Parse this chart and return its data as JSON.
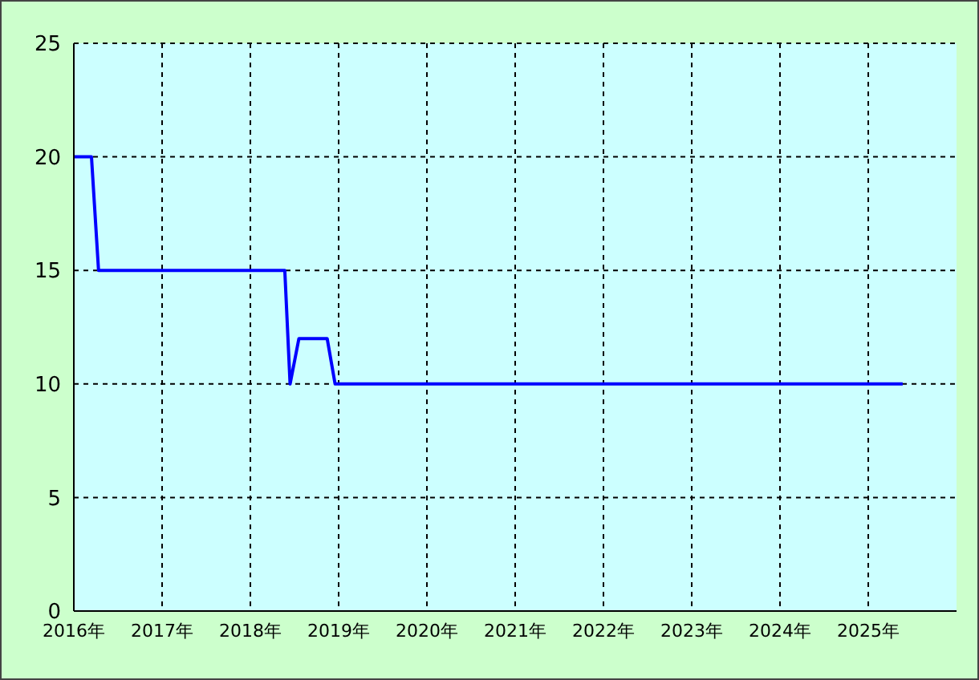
{
  "chart_data": {
    "type": "line",
    "x": [
      2016,
      2016.2,
      2016.28,
      2018.39,
      2018.45,
      2018.55,
      2018.87,
      2018.96,
      2025.39
    ],
    "series": [
      {
        "color": "#0000ff",
        "values": [
          20,
          20,
          15,
          15,
          10,
          12,
          12,
          10,
          10
        ]
      }
    ],
    "xlim": [
      2016,
      2026
    ],
    "xticks": [
      {
        "value": 2016,
        "label": "2016年"
      },
      {
        "value": 2017,
        "label": "2017年"
      },
      {
        "value": 2018,
        "label": "2018年"
      },
      {
        "value": 2019,
        "label": "2019年"
      },
      {
        "value": 2020,
        "label": "2020年"
      },
      {
        "value": 2021,
        "label": "2021年"
      },
      {
        "value": 2022,
        "label": "2022年"
      },
      {
        "value": 2023,
        "label": "2023年"
      },
      {
        "value": 2024,
        "label": "2024年"
      },
      {
        "value": 2025,
        "label": "2025年"
      }
    ],
    "ylim": [
      0,
      25
    ],
    "yticks": [
      0,
      5,
      10,
      15,
      20,
      25
    ],
    "grid": true,
    "marker": "none",
    "line_style": "solid"
  }
}
